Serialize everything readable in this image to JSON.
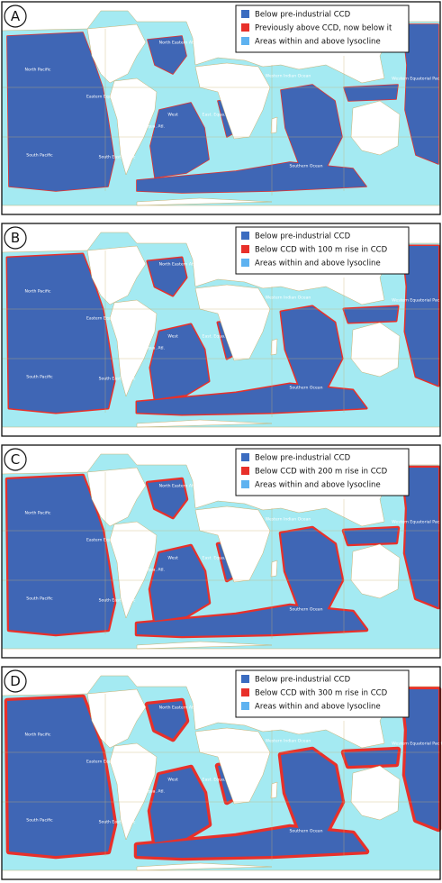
{
  "panels": [
    {
      "label": "A",
      "legend": [
        "Below pre-industrial CCD",
        "Previously above CCD, now below it",
        "Areas within and above lysocline"
      ]
    },
    {
      "label": "B",
      "legend": [
        "Below pre-industrial CCD",
        "Below CCD with 100 m rise in CCD",
        "Areas within and above lysocline"
      ]
    },
    {
      "label": "C",
      "legend": [
        "Below pre-industrial CCD",
        "Below CCD with 200 m rise in CCD",
        "Areas within and above lysocline"
      ]
    },
    {
      "label": "D",
      "legend": [
        "Below pre-industrial CCD",
        "Below CCD with 300 m rise in CCD",
        "Areas within and above lysocline"
      ]
    }
  ],
  "map": {
    "region_labels": [
      "North Pacific",
      "Eastern Equa. Pacific",
      "North Eastern Atlantic",
      "West",
      "Equa. Atl.",
      "East. Equa. Atl.",
      "Western Indian Ocean",
      "South East Pacific",
      "South Pacific",
      "Southern Ocean",
      "Western Equatorial Pacific"
    ]
  }
}
